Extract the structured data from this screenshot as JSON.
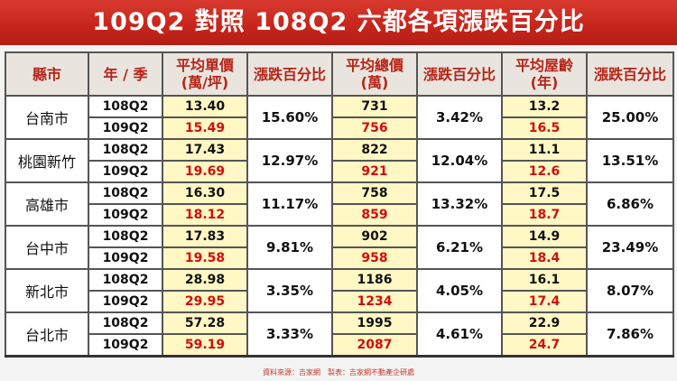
{
  "title": "109Q2 對照 108Q2 六都各項漲跌百分比",
  "headers": {
    "city": "縣市",
    "period": "年 / 季",
    "unit_price": "平均單價\n(萬/坪)",
    "unit_price_pct": "漲跌百分比",
    "total_price": "平均總價\n(萬)",
    "total_price_pct": "漲跌百分比",
    "age": "平均屋齡\n(年)",
    "age_pct": "漲跌百分比"
  },
  "rows": [
    {
      "city": "台南市",
      "prev": "108Q2",
      "curr": "109Q2",
      "up_prev": "13.40",
      "up_curr": "15.49",
      "up_pct": "15.60%",
      "tp_prev": "731",
      "tp_curr": "756",
      "tp_pct": "3.42%",
      "age_prev": "13.2",
      "age_curr": "16.5",
      "age_pct": "25.00%"
    },
    {
      "city": "桃園新竹",
      "prev": "108Q2",
      "curr": "109Q2",
      "up_prev": "17.43",
      "up_curr": "19.69",
      "up_pct": "12.97%",
      "tp_prev": "822",
      "tp_curr": "921",
      "tp_pct": "12.04%",
      "age_prev": "11.1",
      "age_curr": "12.6",
      "age_pct": "13.51%"
    },
    {
      "city": "高雄市",
      "prev": "108Q2",
      "curr": "109Q2",
      "up_prev": "16.30",
      "up_curr": "18.12",
      "up_pct": "11.17%",
      "tp_prev": "758",
      "tp_curr": "859",
      "tp_pct": "13.32%",
      "age_prev": "17.5",
      "age_curr": "18.7",
      "age_pct": "6.86%"
    },
    {
      "city": "台中市",
      "prev": "108Q2",
      "curr": "109Q2",
      "up_prev": "17.83",
      "up_curr": "19.58",
      "up_pct": "9.81%",
      "tp_prev": "902",
      "tp_curr": "958",
      "tp_pct": "6.21%",
      "age_prev": "14.9",
      "age_curr": "18.4",
      "age_pct": "23.49%"
    },
    {
      "city": "新北市",
      "prev": "108Q2",
      "curr": "109Q2",
      "up_prev": "28.98",
      "up_curr": "29.95",
      "up_pct": "3.35%",
      "tp_prev": "1186",
      "tp_curr": "1234",
      "tp_pct": "4.05%",
      "age_prev": "16.1",
      "age_curr": "17.4",
      "age_pct": "8.07%"
    },
    {
      "city": "台北市",
      "prev": "108Q2",
      "curr": "109Q2",
      "up_prev": "57.28",
      "up_curr": "59.19",
      "up_pct": "3.33%",
      "tp_prev": "1995",
      "tp_curr": "2087",
      "tp_pct": "4.61%",
      "age_prev": "22.9",
      "age_curr": "24.7",
      "age_pct": "7.86%"
    }
  ],
  "watermark": "吉家網不動產",
  "watermark_url": "www.gjwi.com.tw",
  "source": "資料來源：吉家網　製表：吉家網不動產企研處",
  "colors": {
    "title_bg": "#c8261c",
    "header_text": "#b72418",
    "curr_value": "#d10d0d",
    "value_bg": "#fff7c4"
  }
}
